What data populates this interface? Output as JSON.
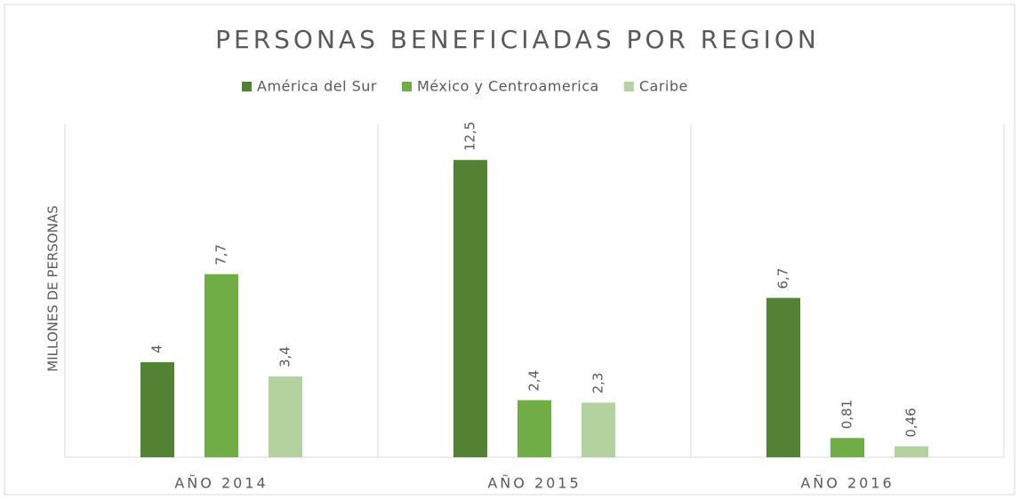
{
  "chart_data": {
    "type": "bar",
    "title": "PERSONAS BENEFICIADAS POR REGION",
    "ylabel": "MILLONES DE PERSONAS",
    "categories": [
      "AÑO 2014",
      "AÑO 2015",
      "AÑO 2016"
    ],
    "series": [
      {
        "name": "América del Sur",
        "color": "#548235",
        "values": [
          4,
          12.5,
          6.7
        ],
        "value_labels": [
          "4",
          "12,5",
          "6,7"
        ]
      },
      {
        "name": "México y Centroamerica",
        "color": "#70ad47",
        "values": [
          7.7,
          2.4,
          0.81
        ],
        "value_labels": [
          "7,7",
          "2,4",
          "0,81"
        ]
      },
      {
        "name": "Caribe",
        "color": "#b3d2a0",
        "values": [
          3.4,
          2.3,
          0.46
        ],
        "value_labels": [
          "3,4",
          "2,3",
          "0,46"
        ]
      }
    ],
    "ylim": [
      0,
      14
    ],
    "legend": "top"
  }
}
